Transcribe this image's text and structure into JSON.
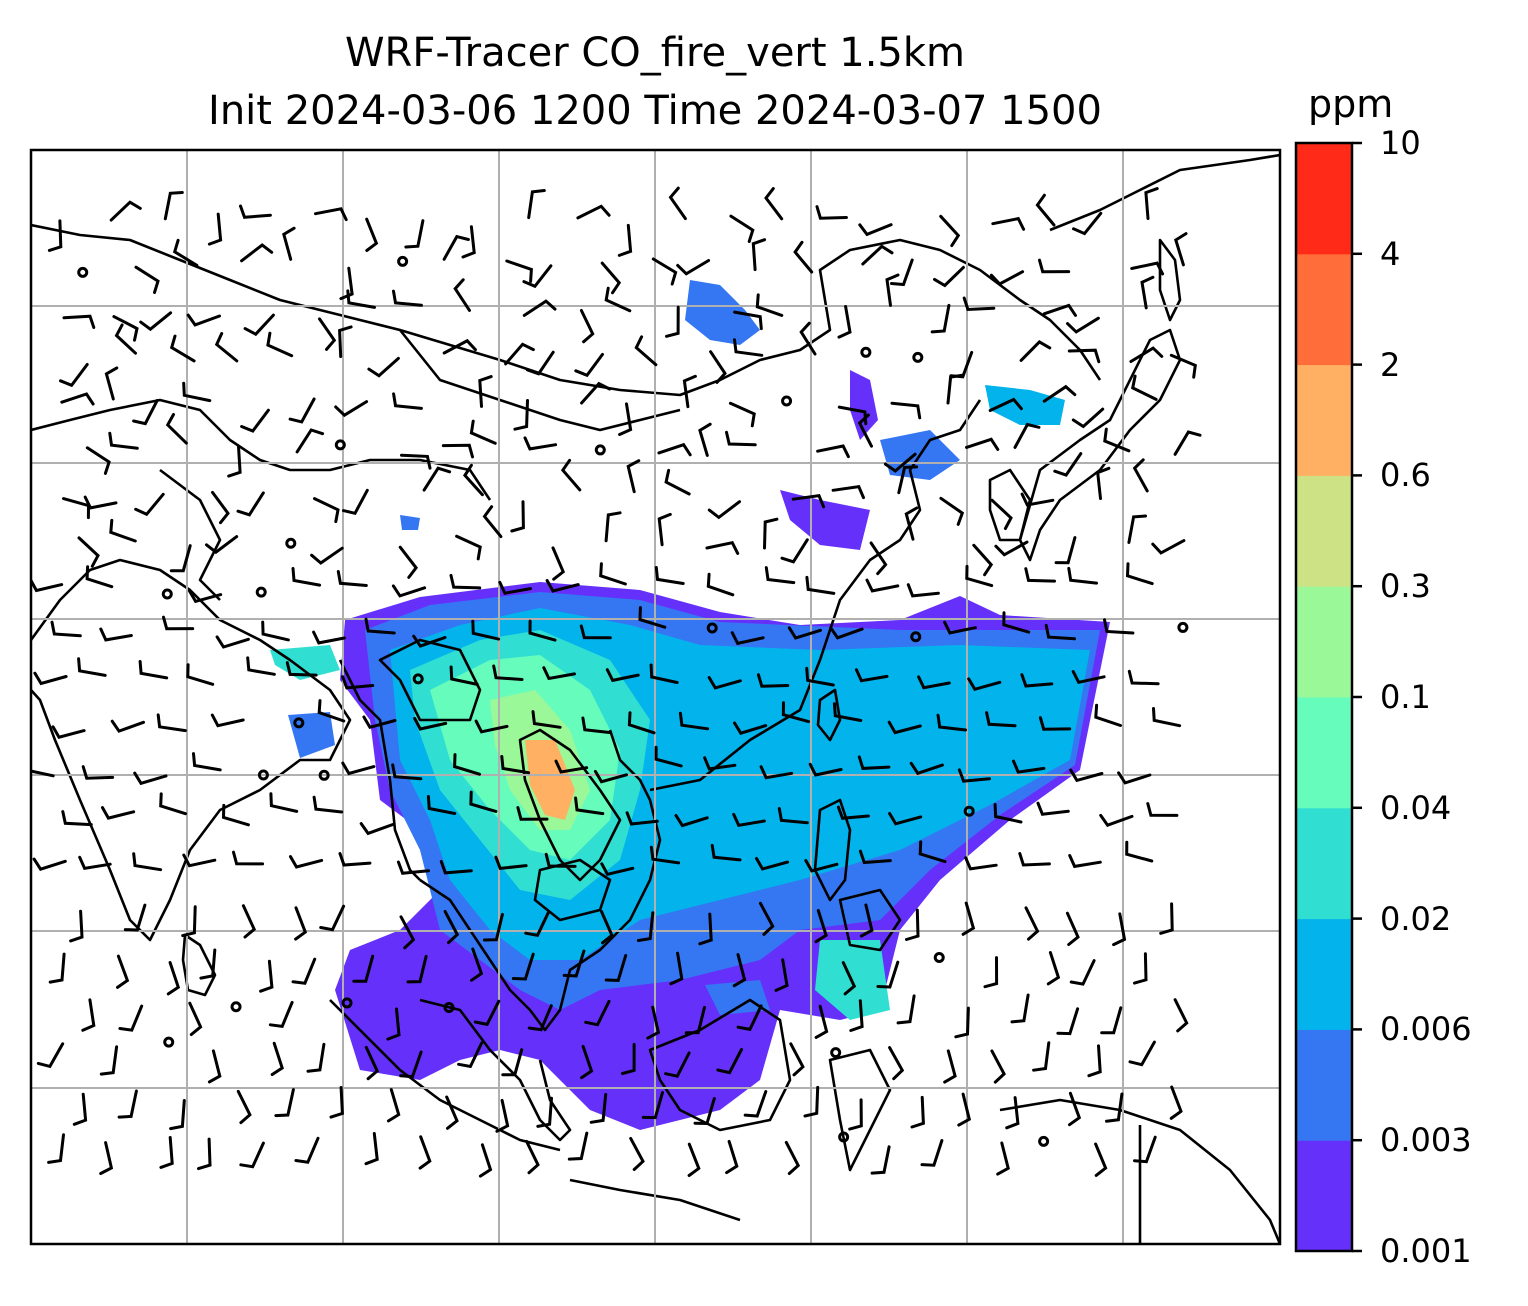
{
  "title": {
    "line1": "WRF-Tracer CO_fire_vert 1.5km",
    "line2": "Init 2024-03-06 1200 Time 2024-03-07 1500"
  },
  "colorbar": {
    "units": "ppm",
    "levels": [
      "0.001",
      "0.003",
      "0.006",
      "0.02",
      "0.04",
      "0.1",
      "0.3",
      "0.6",
      "2",
      "4",
      "10"
    ],
    "colors": [
      "#6630fb",
      "#3576f3",
      "#03b3ec",
      "#30dfd2",
      "#66fcbc",
      "#9bf898",
      "#cde285",
      "#ffb062",
      "#ff6d3a",
      "#ff2a17"
    ]
  },
  "map": {
    "ocean_color": "#ffffff",
    "gridline_color": "#b0b0b0",
    "coastline_color": "#000000",
    "wind_barb_color": "#000000",
    "plume_color_low": "#6630fb",
    "plume_color_mid": "#03b3ec",
    "plume_color_high": "#ffb062"
  }
}
